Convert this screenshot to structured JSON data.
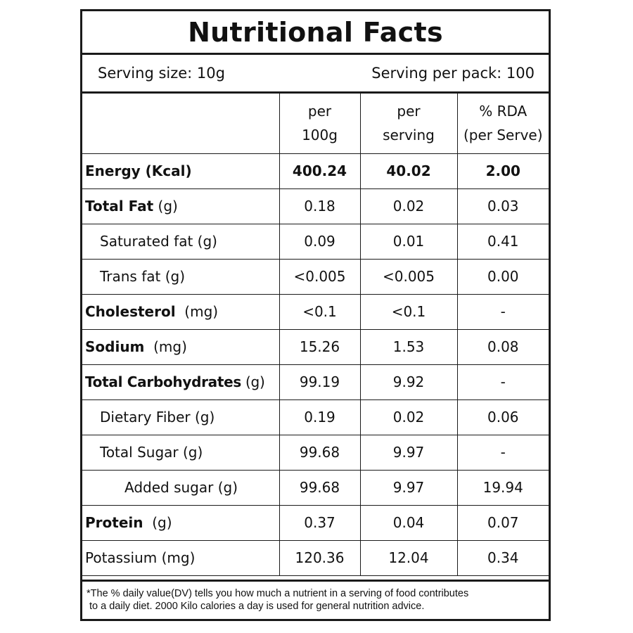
{
  "title": "Nutritional Facts",
  "serving": {
    "size": "Serving size: 10g",
    "per_pack": "Serving per pack: 100"
  },
  "columns": {
    "per_100g": [
      "per",
      "100g"
    ],
    "per_serving": [
      "per",
      "serving"
    ],
    "rda": [
      "% RDA",
      "(per Serve)"
    ]
  },
  "rows": [
    {
      "name": "Energy (Kcal)",
      "unit": "",
      "per_100g": "400.24",
      "per_serving": "40.02",
      "rda": "2.00"
    },
    {
      "name": "Total Fat",
      "unit": " (g)",
      "per_100g": "0.18",
      "per_serving": "0.02",
      "rda": "0.03"
    },
    {
      "name": "Saturated fat (g)",
      "unit": "",
      "per_100g": "0.09",
      "per_serving": "0.01",
      "rda": "0.41"
    },
    {
      "name": "Trans fat (g)",
      "unit": "",
      "per_100g": "<0.005",
      "per_serving": "<0.005",
      "rda": "0.00"
    },
    {
      "name": "Cholesterol",
      "unit": "  (mg)",
      "per_100g": "<0.1",
      "per_serving": "<0.1",
      "rda": "-"
    },
    {
      "name": "Sodium",
      "unit": "  (mg)",
      "per_100g": "15.26",
      "per_serving": "1.53",
      "rda": "0.08"
    },
    {
      "name": "Total Carbohydrates",
      "unit": " (g)",
      "per_100g": "99.19",
      "per_serving": "9.92",
      "rda": "-"
    },
    {
      "name": "Dietary Fiber (g)",
      "unit": "",
      "per_100g": "0.19",
      "per_serving": "0.02",
      "rda": "0.06"
    },
    {
      "name": "Total Sugar (g)",
      "unit": "",
      "per_100g": "99.68",
      "per_serving": "9.97",
      "rda": "-"
    },
    {
      "name": "Added sugar (g)",
      "unit": "",
      "per_100g": "99.68",
      "per_serving": "9.97",
      "rda": "19.94"
    },
    {
      "name": "Protein",
      "unit": "  (g)",
      "per_100g": "0.37",
      "per_serving": "0.04",
      "rda": "0.07"
    },
    {
      "name": "Potassium (mg)",
      "unit": "",
      "per_100g": "120.36",
      "per_serving": "12.04",
      "rda": "0.34"
    }
  ],
  "footnote": {
    "line1": "*The % daily value(DV) tells you how much a nutrient in a serving of food contributes",
    "line2": "to a daily diet. 2000 Kilo calories a day is used for general nutrition advice."
  }
}
